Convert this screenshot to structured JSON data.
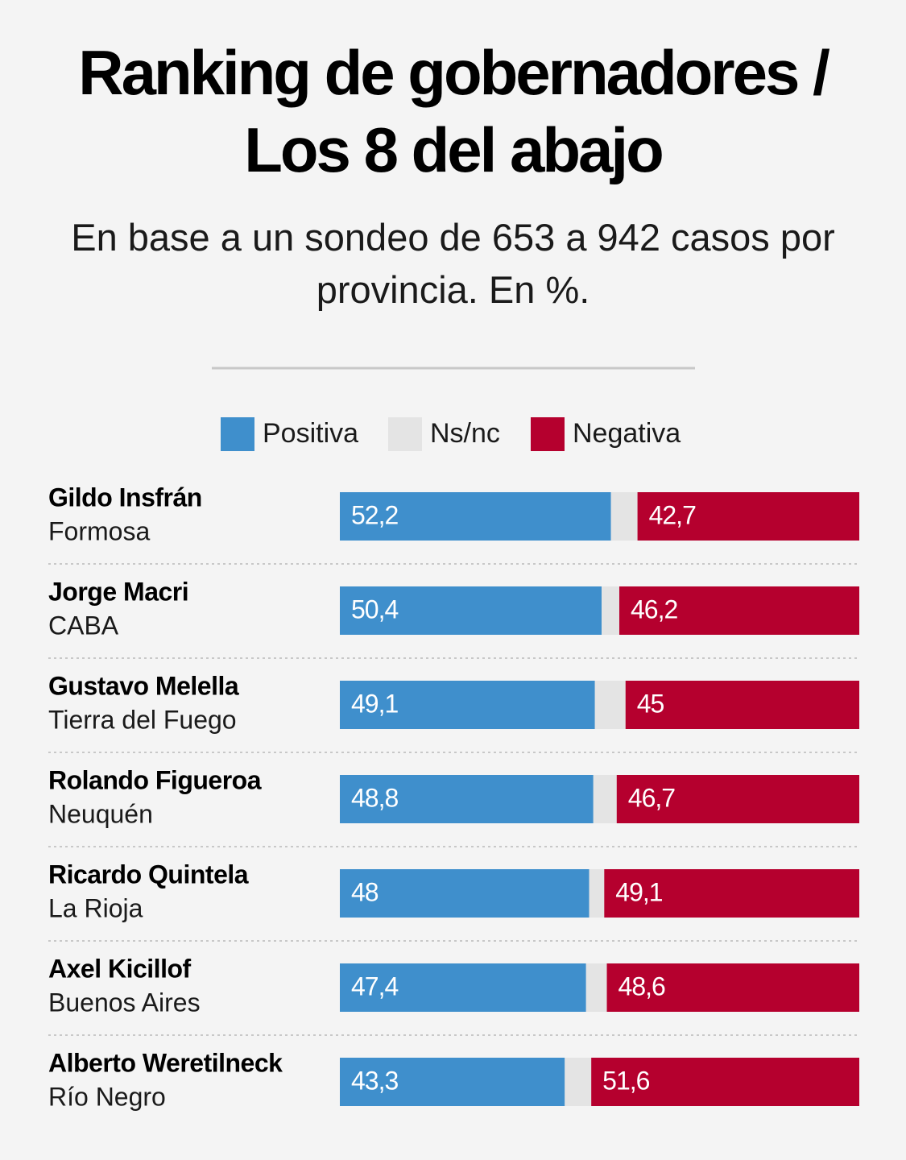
{
  "chart_data": {
    "type": "stacked-bar-horizontal",
    "title": "Ranking de gobernadores / Los 8 del abajo",
    "subtitle": "En base a un sondeo de 653 a 942 casos por provincia. En %.",
    "categories": [
      "Gildo Insfrán",
      "Jorge Macri",
      "Gustavo Melella",
      "Rolando Figueroa",
      "Ricardo Quintela",
      "Axel Kicillof",
      "Alberto Weretilneck"
    ],
    "provinces": [
      "Formosa",
      "CABA",
      "Tierra del Fuego",
      "Neuquén",
      "La Rioja",
      "Buenos Aires",
      "Río Negro"
    ],
    "series": [
      {
        "name": "Positiva",
        "color": "#3f8fcc",
        "values": [
          52.2,
          50.4,
          49.1,
          48.8,
          48,
          47.4,
          43.3
        ],
        "value_labels": [
          "52,2",
          "50,4",
          "49,1",
          "48,8",
          "48",
          "47,4",
          "43,3"
        ]
      },
      {
        "name": "Ns/nc",
        "color": "#e4e4e4",
        "values": [
          5.1,
          3.4,
          5.9,
          4.5,
          2.9,
          4,
          5.1
        ]
      },
      {
        "name": "Negativa",
        "color": "#b5002e",
        "values": [
          42.7,
          46.2,
          45,
          46.7,
          49.1,
          48.6,
          51.6
        ],
        "value_labels": [
          "42,7",
          "46,2",
          "45",
          "46,7",
          "49,1",
          "48,6",
          "51,6"
        ]
      }
    ],
    "xlim": [
      0,
      100
    ]
  }
}
